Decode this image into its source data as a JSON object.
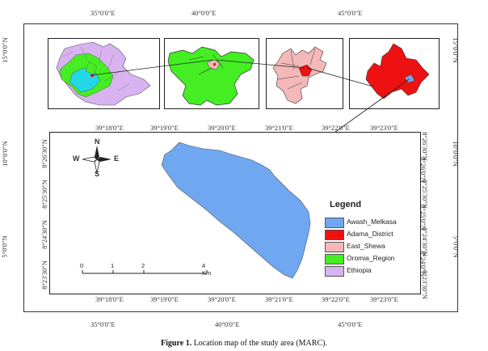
{
  "outer_axis": {
    "top": [
      "35°0'0\"E",
      "40°0'0\"E",
      "45°0'0\"E"
    ],
    "bottom": [
      "35°0'0\"E",
      "40°0'0\"E",
      "45°0'0\"E"
    ],
    "left": [
      "15°0'0\"N",
      "10°0'0\"N",
      "5°0'0\"N"
    ],
    "right": [
      "15°0'0\"N",
      "10°0'0\"N",
      "5°0'0\"N"
    ]
  },
  "main_axis": {
    "top": [
      "39°18'0\"E",
      "39°19'0\"E",
      "39°20'0\"E",
      "39°21'0\"E",
      "39°22'0\"E",
      "39°23'0\"E"
    ],
    "bottom": [
      "39°18'0\"E",
      "39°19'0\"E",
      "39°20'0\"E",
      "39°21'0\"E",
      "39°22'0\"E",
      "39°23'0\"E"
    ],
    "left": [
      "8°26'30\"N",
      "8°25'30\"N",
      "8°24'30\"N",
      "8°23'30\"N"
    ],
    "right": [
      "8°26'30\"N",
      "8°26'0\"N",
      "8°25'30\"N",
      "8°25'0\"N",
      "8°24'30\"N",
      "8°24'0\"N",
      "8°23'30\"N"
    ]
  },
  "compass": {
    "n": "N",
    "s": "S",
    "e": "E",
    "w": "W"
  },
  "scale_bar": {
    "ticks": [
      "0",
      "1",
      "2",
      "4 Km"
    ]
  },
  "legend": {
    "title": "Legend",
    "items": [
      {
        "label": "Awash_Melkasa",
        "color": "#6fa8f0"
      },
      {
        "label": "Adama_District",
        "color": "#ee1111"
      },
      {
        "label": "East_Shewa",
        "color": "#f5b8b8"
      },
      {
        "label": "Oromia_Region",
        "color": "#44ee22"
      },
      {
        "label": "Ethiopia",
        "color": "#d8b3ef"
      }
    ]
  },
  "caption": {
    "prefix": "Figure 1.",
    "text": " Location map of the study area (MARC)."
  },
  "colors": {
    "study_area": "#6fa8f0",
    "district": "#ee1111",
    "zone": "#f5b8b8",
    "region": "#44ee22",
    "country": "#d8b3ef"
  }
}
